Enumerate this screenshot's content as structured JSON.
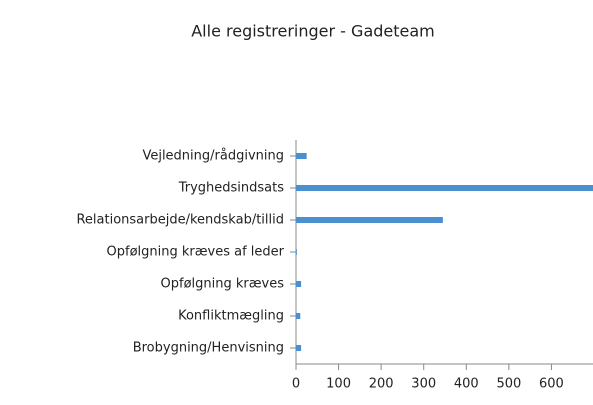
{
  "chart_data": {
    "type": "bar",
    "orientation": "horizontal",
    "title": "Alle registreringer - Gadeteam",
    "categories": [
      "Vejledning/rådgivning",
      "Tryghedsindsats",
      "Relationsarbejde/kendskab/tillid",
      "Opfølgning kræves af leder",
      "Opfølgning kræves",
      "Konfliktmægling",
      "Brobygning/Henvisning"
    ],
    "values": [
      25,
      700,
      345,
      2,
      12,
      10,
      12
    ],
    "color": "#4a8fd0",
    "xlim": [
      0,
      700
    ],
    "xticks": [
      0,
      100,
      200,
      300,
      400,
      500,
      600
    ],
    "grid": false
  }
}
